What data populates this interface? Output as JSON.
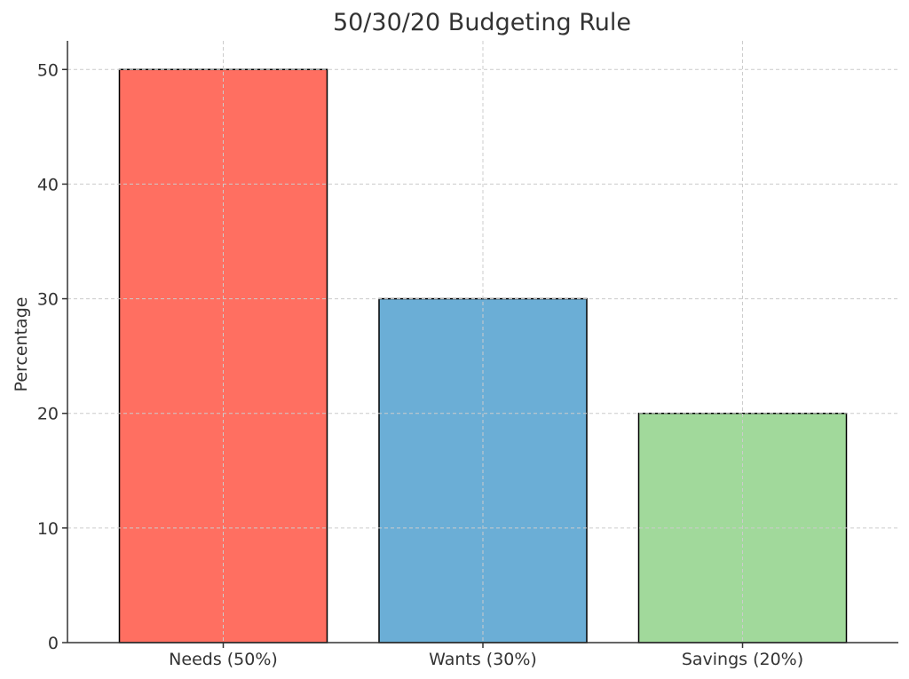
{
  "chart_data": {
    "type": "bar",
    "title": "50/30/20 Budgeting Rule",
    "xlabel": "",
    "ylabel": "Percentage",
    "categories": [
      "Needs (50%)",
      "Wants (30%)",
      "Savings (20%)"
    ],
    "values": [
      50,
      30,
      20
    ],
    "colors": [
      "#ff6f61",
      "#6baed6",
      "#a1d99b"
    ],
    "ylim": [
      0,
      52.5
    ],
    "yticks": [
      0,
      10,
      20,
      30,
      40,
      50
    ],
    "grid": true
  }
}
